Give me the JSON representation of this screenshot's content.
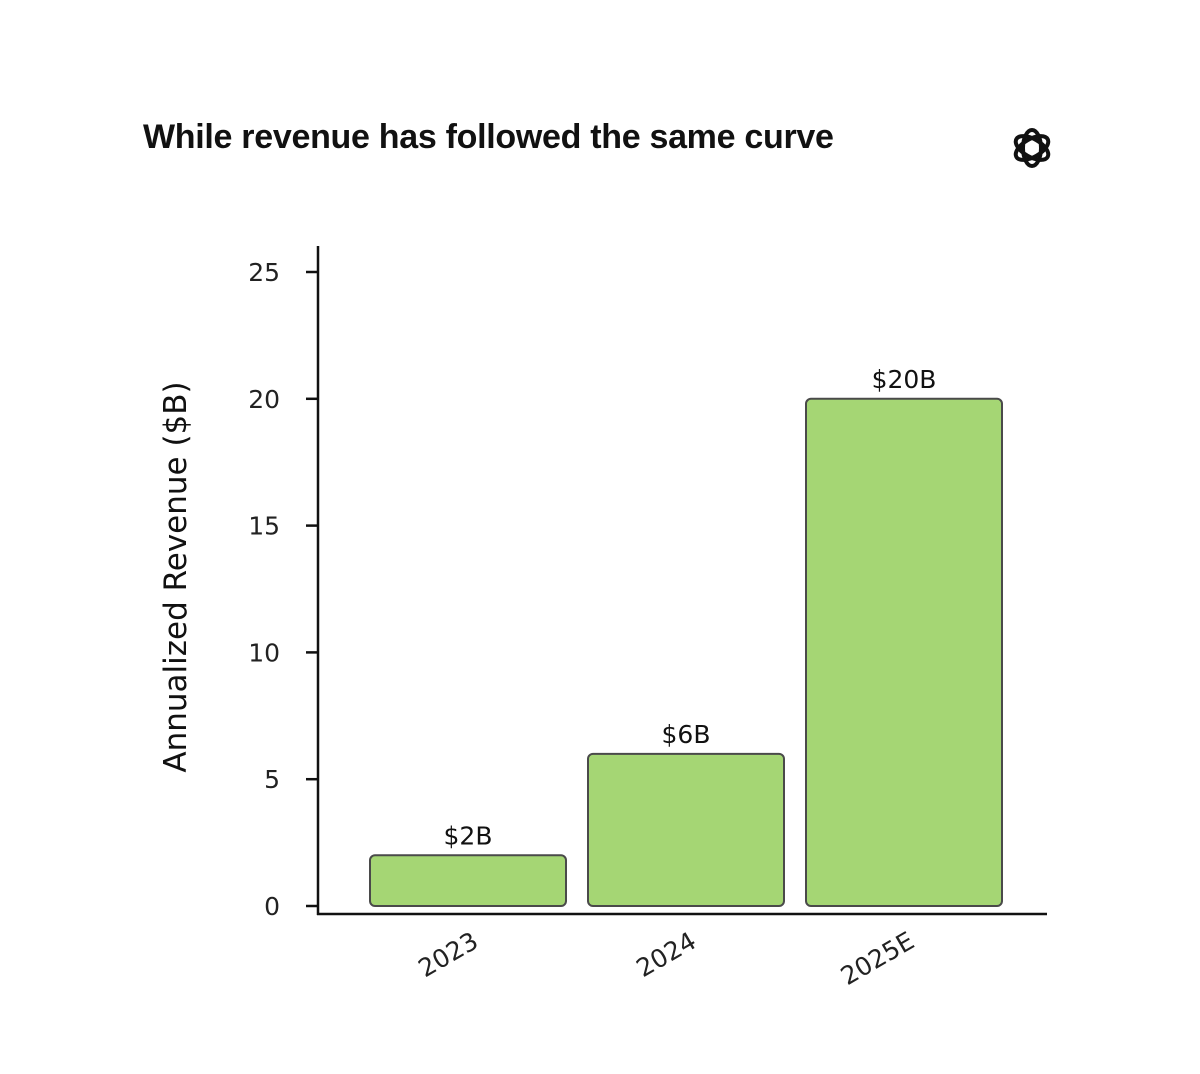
{
  "logo": {
    "icon": "openai-logo-icon"
  },
  "chart_data": {
    "type": "bar",
    "title": "While revenue has followed the same curve",
    "ylabel": "Annualized Revenue ($B)",
    "xlabel": "",
    "categories": [
      "2023",
      "2024",
      "2025E"
    ],
    "values": [
      2,
      6,
      20
    ],
    "data_labels": [
      "$2B",
      "$6B",
      "$20B"
    ],
    "ylim": [
      0,
      25
    ],
    "yticks": [
      0,
      5,
      10,
      15,
      20,
      25
    ],
    "grid": false,
    "legend": "none",
    "colors": {
      "bar_fill": "#a5d674",
      "bar_stroke": "#4a4a4a",
      "axis": "#111111"
    }
  }
}
